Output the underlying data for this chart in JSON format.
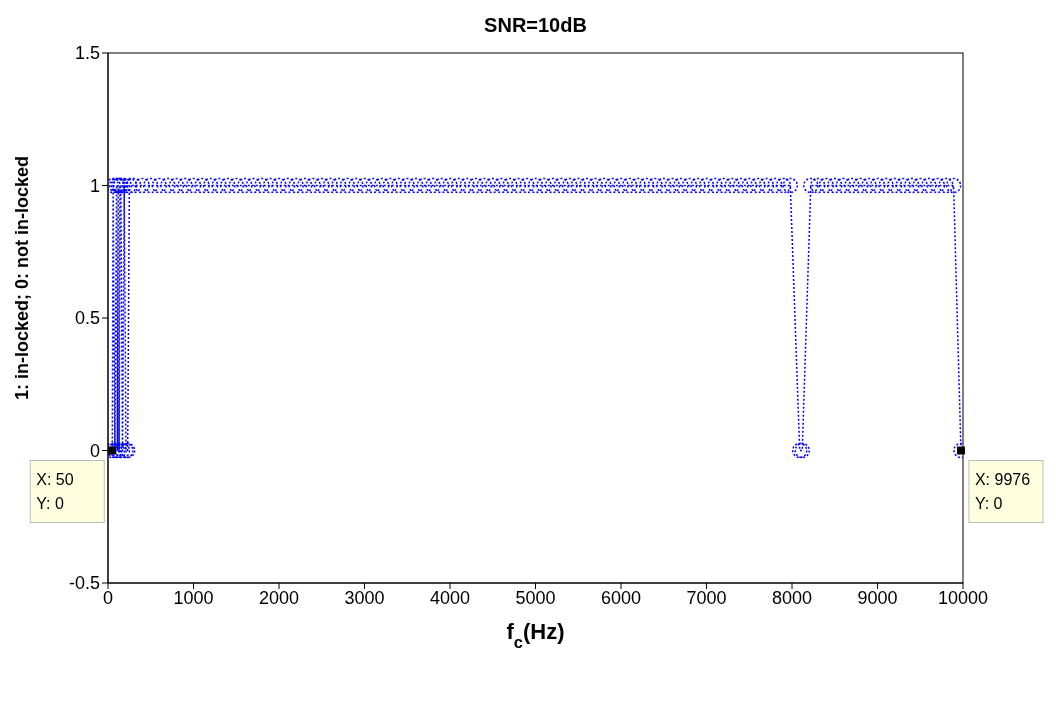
{
  "chart_data": {
    "type": "line",
    "title": "SNR=10dB",
    "xlabel": "f$_{c}$(Hz)",
    "ylabel": "1: in-locked; 0: not in-locked",
    "x": [
      50,
      60,
      80,
      100,
      110,
      120,
      130,
      140,
      150,
      170,
      190,
      210,
      230,
      250,
      300,
      400,
      500,
      600,
      700,
      800,
      900,
      1000,
      1100,
      1200,
      1300,
      1400,
      1500,
      1600,
      1700,
      1800,
      1900,
      2000,
      2100,
      2200,
      2300,
      2400,
      2500,
      2600,
      2700,
      2800,
      2900,
      3000,
      3100,
      3200,
      3300,
      3400,
      3500,
      3600,
      3700,
      3800,
      3900,
      4000,
      4100,
      4200,
      4300,
      4400,
      4500,
      4600,
      4700,
      4800,
      4900,
      5000,
      5100,
      5200,
      5300,
      5400,
      5500,
      5600,
      5700,
      5800,
      5900,
      6000,
      6100,
      6200,
      6300,
      6400,
      6500,
      6600,
      6700,
      6800,
      6900,
      7000,
      7100,
      7200,
      7300,
      7400,
      7500,
      7600,
      7700,
      7800,
      7900,
      7980,
      8090,
      8120,
      8220,
      8300,
      8400,
      8500,
      8600,
      8700,
      8800,
      8900,
      9000,
      9100,
      9200,
      9300,
      9400,
      9500,
      9600,
      9700,
      9800,
      9890,
      9976
    ],
    "series": [
      {
        "color": "#0000ff",
        "values": [
          0,
          1,
          0,
          1,
          0,
          1,
          0,
          1,
          1,
          0,
          1,
          0,
          0,
          1,
          1,
          1,
          1,
          1,
          1,
          1,
          1,
          1,
          1,
          1,
          1,
          1,
          1,
          1,
          1,
          1,
          1,
          1,
          1,
          1,
          1,
          1,
          1,
          1,
          1,
          1,
          1,
          1,
          1,
          1,
          1,
          1,
          1,
          1,
          1,
          1,
          1,
          1,
          1,
          1,
          1,
          1,
          1,
          1,
          1,
          1,
          1,
          1,
          1,
          1,
          1,
          1,
          1,
          1,
          1,
          1,
          1,
          1,
          1,
          1,
          1,
          1,
          1,
          1,
          1,
          1,
          1,
          1,
          1,
          1,
          1,
          1,
          1,
          1,
          1,
          1,
          1,
          1,
          0,
          0,
          1,
          1,
          1,
          1,
          1,
          1,
          1,
          1,
          1,
          1,
          1,
          1,
          1,
          1,
          1,
          1,
          1,
          1,
          0
        ]
      }
    ],
    "xlim": [
      0,
      10000
    ],
    "xticks": [
      0,
      1000,
      2000,
      3000,
      4000,
      5000,
      6000,
      7000,
      8000,
      9000,
      10000
    ],
    "ylim": [
      -0.5,
      1.5
    ],
    "yticks": [
      -0.5,
      0,
      0.5,
      1,
      1.5
    ],
    "grid": false,
    "legend": false,
    "marker": "circle",
    "line_style": "dotted",
    "annotations": [
      {
        "text": "X: 50\nY: 0",
        "x": 50,
        "y": 0
      },
      {
        "text": "X: 9976\nY: 0",
        "x": 9976,
        "y": 0
      }
    ]
  }
}
